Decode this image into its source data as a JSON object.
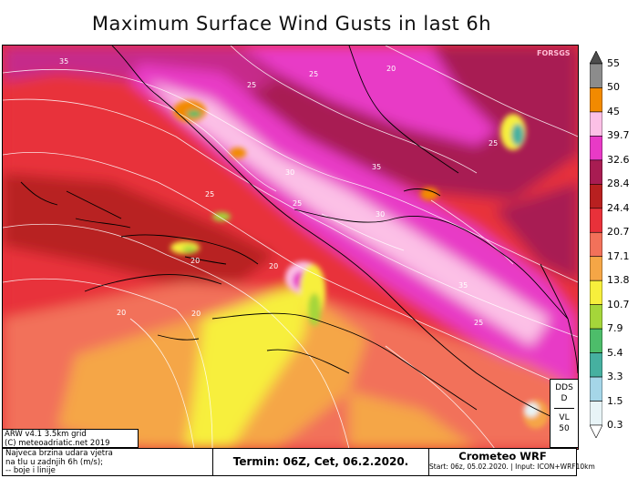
{
  "title": "Maximum Surface Wind Gusts in last 6h",
  "map": {
    "contour_labels": [
      {
        "text": "35"
      },
      {
        "text": "25"
      },
      {
        "text": "20"
      },
      {
        "text": "25"
      },
      {
        "text": "30"
      },
      {
        "text": "35"
      },
      {
        "text": "25"
      },
      {
        "text": "25"
      },
      {
        "text": "30"
      },
      {
        "text": "25"
      },
      {
        "text": "20"
      },
      {
        "text": "20"
      },
      {
        "text": "35"
      },
      {
        "text": "20"
      },
      {
        "text": "25"
      },
      {
        "text": "20"
      }
    ],
    "corner_tag": "FORSGS"
  },
  "colorbar": {
    "unit": "m/s",
    "levels": [
      "55",
      "50",
      "45",
      "39.7",
      "32.6",
      "28.4",
      "24.4",
      "20.7",
      "17.1",
      "13.8",
      "10.7",
      "7.9",
      "5.4",
      "3.3",
      "1.5",
      "0.3"
    ],
    "colors": [
      "#4d4d4d",
      "#8c8c8c",
      "#f28a00",
      "#fcc0e6",
      "#e83ac6",
      "#a81c52",
      "#b82020",
      "#e8313a",
      "#f2715a",
      "#f5a646",
      "#f7ef3c",
      "#a5d63a",
      "#4dbd6a",
      "#46b0a0",
      "#a5d6e8",
      "#e8f4f7"
    ]
  },
  "dds_box": {
    "line1": "DDS",
    "line2": "D",
    "line3": "VL",
    "line4": "50"
  },
  "credit": {
    "line1": "ARW v4.1 3.5km grid",
    "line2": "(C) meteoadriatic.net 2019"
  },
  "footer": {
    "description": [
      "Najveca brzina udara vjetra",
      "na tlu u zadnjih 6h (m/s);",
      "-- boje i linije"
    ],
    "termin": "Termin: 06Z, Cet, 06.2.2020.",
    "brand_name": "Crometeo WRF",
    "brand_info": "Start: 06z, 05.02.2020. | Input: ICON+WRF10km"
  }
}
